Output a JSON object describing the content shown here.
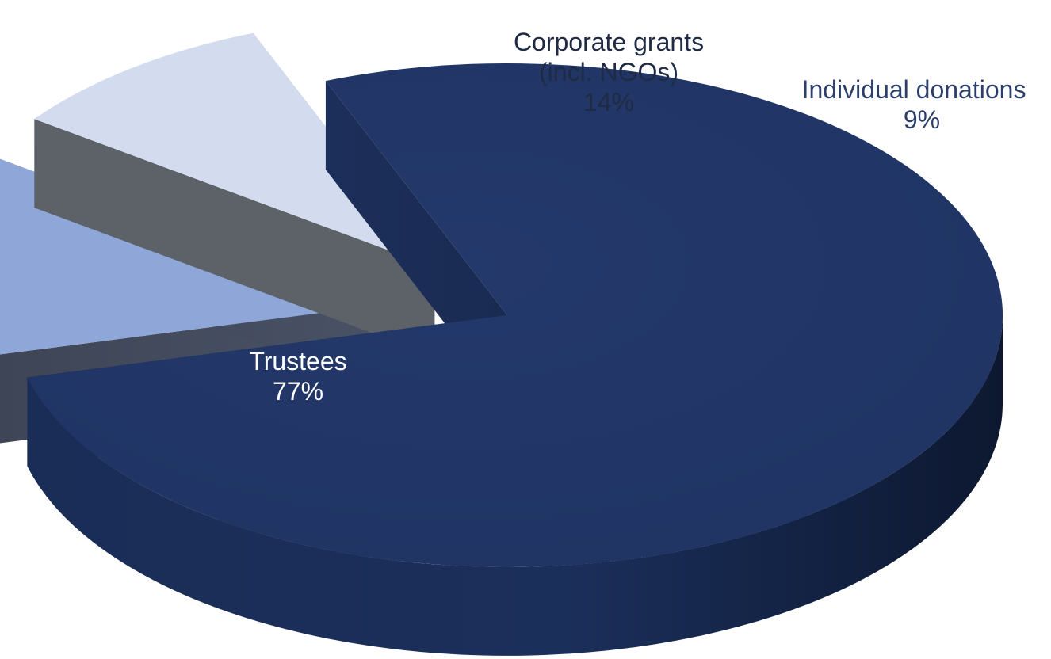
{
  "chart_data": {
    "type": "pie",
    "variant": "3d-exploded",
    "slices": [
      {
        "label": "Trustees",
        "value": 77,
        "value_label": "77%",
        "color": "#21386a",
        "label_color": "#ffffff"
      },
      {
        "label": "Corporate grants (incl. NGOs)",
        "label_lines": [
          "Corporate grants",
          "(incl. NGOs)"
        ],
        "value": 14,
        "value_label": "14%",
        "color": "#8ea6d8",
        "label_color": "#1f2a44"
      },
      {
        "label": "Individual donations",
        "value": 9,
        "value_label": "9%",
        "color": "#d3dcee",
        "label_color": "#2c3f6b"
      }
    ]
  }
}
